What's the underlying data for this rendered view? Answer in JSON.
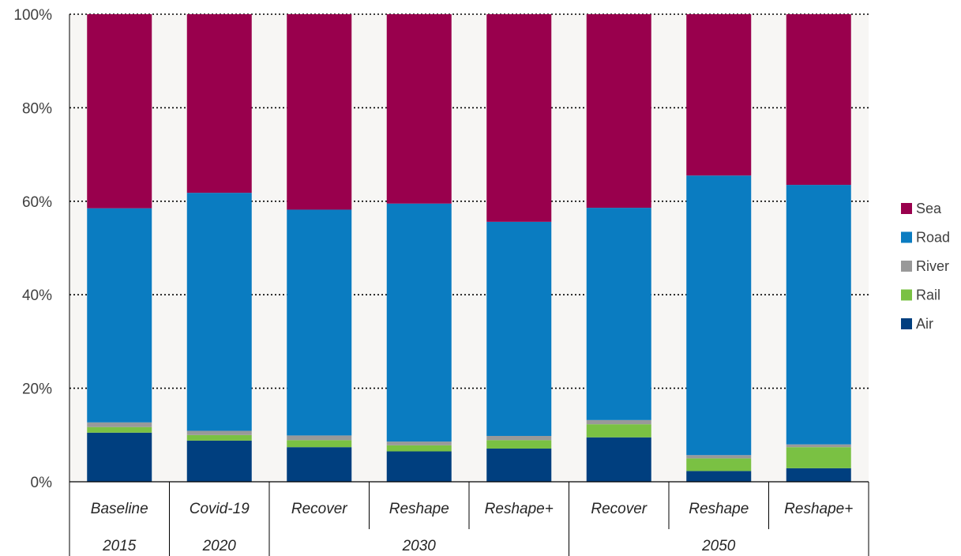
{
  "chart_data": {
    "type": "bar",
    "stacked": true,
    "percent": true,
    "categories": [
      {
        "scenario": "Baseline",
        "group": "2015"
      },
      {
        "scenario": "Covid-19",
        "group": "2020"
      },
      {
        "scenario": "Recover",
        "group": "2030"
      },
      {
        "scenario": "Reshape",
        "group": "2030"
      },
      {
        "scenario": "Reshape+",
        "group": "2030"
      },
      {
        "scenario": "Recover",
        "group": "2050"
      },
      {
        "scenario": "Reshape",
        "group": "2050"
      },
      {
        "scenario": "Reshape+",
        "group": "2050"
      }
    ],
    "groups": [
      "2015",
      "2020",
      "2030",
      "2050"
    ],
    "series": [
      {
        "name": "Air",
        "color": "#003f7f",
        "values": [
          10.5,
          8.8,
          7.4,
          6.5,
          7.1,
          9.5,
          2.3,
          2.9
        ]
      },
      {
        "name": "Rail",
        "color": "#7ac143",
        "values": [
          1.2,
          1.2,
          1.5,
          1.3,
          1.8,
          2.8,
          2.7,
          4.5
        ]
      },
      {
        "name": "River",
        "color": "#999999",
        "values": [
          1.0,
          0.9,
          1.0,
          0.8,
          0.9,
          0.9,
          0.7,
          0.6
        ]
      },
      {
        "name": "Road",
        "color": "#0a7cc1",
        "values": [
          45.8,
          50.9,
          48.3,
          50.9,
          45.8,
          45.4,
          59.8,
          55.5
        ]
      },
      {
        "name": "Sea",
        "color": "#99004d",
        "values": [
          41.5,
          38.2,
          41.8,
          40.5,
          44.4,
          41.4,
          34.5,
          36.5
        ]
      }
    ],
    "legend_order": [
      "Sea",
      "Road",
      "River",
      "Rail",
      "Air"
    ],
    "y_ticks": [
      "0%",
      "20%",
      "40%",
      "60%",
      "80%",
      "100%"
    ],
    "ylim": [
      0,
      100
    ],
    "grid": true,
    "legend_position": "right"
  }
}
